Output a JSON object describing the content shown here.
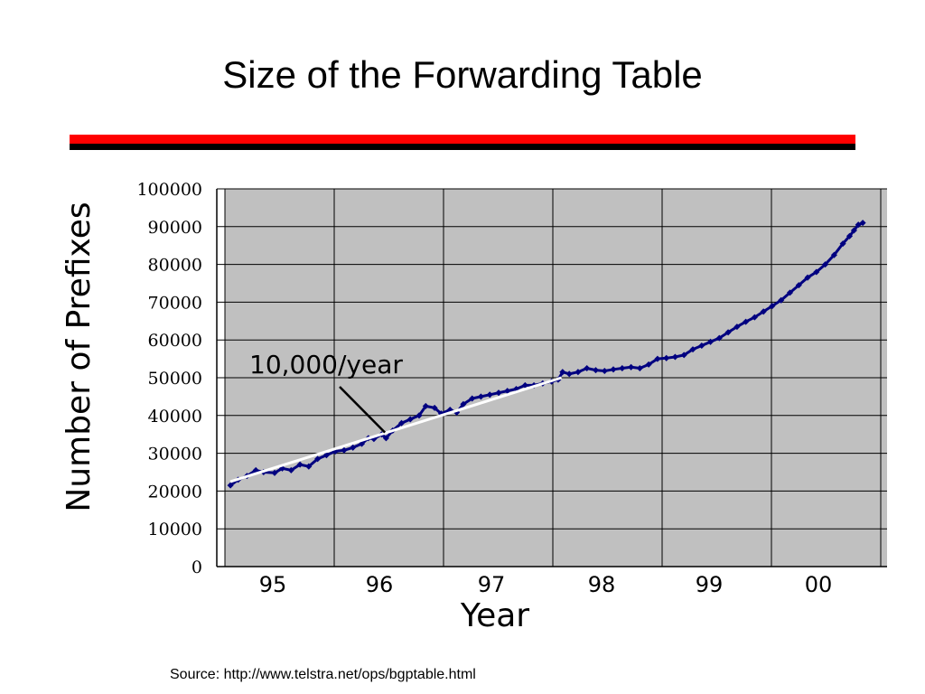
{
  "slide": {
    "title": "Size of the Forwarding Table",
    "source": "Source: http://www.telstra.net/ops/bgptable.html"
  },
  "colors": {
    "title_rule_red": "#ff0000",
    "title_rule_black": "#000000",
    "plot_background": "#c0c0c0",
    "series": "#000080",
    "trendline": "#ffffff"
  },
  "chart_data": {
    "type": "scatter",
    "title": "",
    "xlabel": "Year",
    "ylabel": "Number of Prefixes",
    "ylim": [
      0,
      100000
    ],
    "xlim": [
      1994.6,
      2000.6
    ],
    "yticks": [
      "0",
      "10000",
      "20000",
      "30000",
      "40000",
      "50000",
      "60000",
      "70000",
      "80000",
      "90000",
      "100000"
    ],
    "xticks": [
      "95",
      "96",
      "97",
      "98",
      "99",
      "00"
    ],
    "grid": true,
    "series": [
      {
        "name": "",
        "color": "#000080",
        "points": [
          [
            1994.65,
            21500
          ],
          [
            1994.72,
            23000
          ],
          [
            1994.8,
            24000
          ],
          [
            1994.88,
            25500
          ],
          [
            1994.95,
            25000
          ],
          [
            1995.05,
            24800
          ],
          [
            1995.12,
            26000
          ],
          [
            1995.2,
            25500
          ],
          [
            1995.28,
            27000
          ],
          [
            1995.36,
            26500
          ],
          [
            1995.44,
            28500
          ],
          [
            1995.52,
            29500
          ],
          [
            1995.6,
            30500
          ],
          [
            1995.68,
            30800
          ],
          [
            1995.76,
            31500
          ],
          [
            1995.84,
            32500
          ],
          [
            1995.9,
            34000
          ],
          [
            1995.95,
            33800
          ],
          [
            1996.02,
            35000
          ],
          [
            1996.06,
            34000
          ],
          [
            1996.12,
            36000
          ],
          [
            1996.2,
            38000
          ],
          [
            1996.28,
            39000
          ],
          [
            1996.36,
            40000
          ],
          [
            1996.42,
            42500
          ],
          [
            1996.5,
            42000
          ],
          [
            1996.56,
            40500
          ],
          [
            1996.64,
            41500
          ],
          [
            1996.7,
            40800
          ],
          [
            1996.76,
            43000
          ],
          [
            1996.84,
            44500
          ],
          [
            1996.92,
            45000
          ],
          [
            1997.0,
            45500
          ],
          [
            1997.08,
            46000
          ],
          [
            1997.16,
            46500
          ],
          [
            1997.24,
            47000
          ],
          [
            1997.32,
            48000
          ],
          [
            1997.4,
            48000
          ],
          [
            1997.48,
            48500
          ],
          [
            1997.56,
            49000
          ],
          [
            1997.62,
            49500
          ],
          [
            1997.66,
            51500
          ],
          [
            1997.72,
            51000
          ],
          [
            1997.8,
            51500
          ],
          [
            1997.88,
            52500
          ],
          [
            1997.96,
            52000
          ],
          [
            1998.04,
            51800
          ],
          [
            1998.12,
            52200
          ],
          [
            1998.2,
            52500
          ],
          [
            1998.28,
            52800
          ],
          [
            1998.36,
            52500
          ],
          [
            1998.44,
            53500
          ],
          [
            1998.52,
            55000
          ],
          [
            1998.6,
            55200
          ],
          [
            1998.68,
            55500
          ],
          [
            1998.76,
            56000
          ],
          [
            1998.84,
            57500
          ],
          [
            1998.92,
            58500
          ],
          [
            1999.0,
            59500
          ],
          [
            1999.08,
            60500
          ],
          [
            1999.16,
            62000
          ],
          [
            1999.24,
            63500
          ],
          [
            1999.32,
            64800
          ],
          [
            1999.4,
            66000
          ],
          [
            1999.48,
            67500
          ],
          [
            1999.56,
            69000
          ],
          [
            1999.64,
            70500
          ],
          [
            1999.72,
            72500
          ],
          [
            1999.8,
            74500
          ],
          [
            1999.88,
            76500
          ],
          [
            1999.96,
            78000
          ],
          [
            2000.04,
            80000
          ],
          [
            2000.12,
            82500
          ],
          [
            2000.2,
            85500
          ],
          [
            2000.26,
            87500
          ],
          [
            2000.3,
            89000
          ],
          [
            2000.34,
            90500
          ],
          [
            2000.38,
            91000
          ]
        ]
      }
    ],
    "trendline": {
      "color": "#ffffff",
      "x": [
        1994.65,
        1997.65
      ],
      "y": [
        22500,
        50000
      ]
    },
    "annotations": [
      {
        "text": "10,000/year",
        "arrow_to": [
          1996.05,
          35500
        ]
      }
    ]
  }
}
